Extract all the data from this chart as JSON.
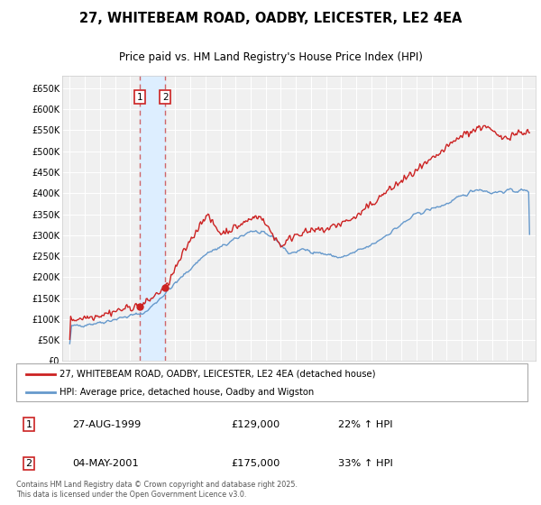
{
  "title": "27, WHITEBEAM ROAD, OADBY, LEICESTER, LE2 4EA",
  "subtitle": "Price paid vs. HM Land Registry's House Price Index (HPI)",
  "ylim": [
    0,
    680000
  ],
  "yticks": [
    0,
    50000,
    100000,
    150000,
    200000,
    250000,
    300000,
    350000,
    400000,
    450000,
    500000,
    550000,
    600000,
    650000
  ],
  "ytick_labels": [
    "£0",
    "£50K",
    "£100K",
    "£150K",
    "£200K",
    "£250K",
    "£300K",
    "£350K",
    "£400K",
    "£450K",
    "£500K",
    "£550K",
    "£600K",
    "£650K"
  ],
  "hpi_color": "#6699cc",
  "price_color": "#cc2222",
  "dashed_color": "#cc4444",
  "span_color": "#ddeeff",
  "legend_label_price": "27, WHITEBEAM ROAD, OADBY, LEICESTER, LE2 4EA (detached house)",
  "legend_label_hpi": "HPI: Average price, detached house, Oadby and Wigston",
  "transaction1_date": "27-AUG-1999",
  "transaction1_price": "£129,000",
  "transaction1_hpi": "22% ↑ HPI",
  "transaction2_date": "04-MAY-2001",
  "transaction2_price": "£175,000",
  "transaction2_hpi": "33% ↑ HPI",
  "footer": "Contains HM Land Registry data © Crown copyright and database right 2025.\nThis data is licensed under the Open Government Licence v3.0.",
  "plot_bg_color": "#f0f0f0",
  "grid_color": "#ffffff",
  "transaction1_x": 1999.65,
  "transaction1_y": 129000,
  "transaction2_x": 2001.34,
  "transaction2_y": 175000,
  "xlim_left": 1994.5,
  "xlim_right": 2025.9
}
